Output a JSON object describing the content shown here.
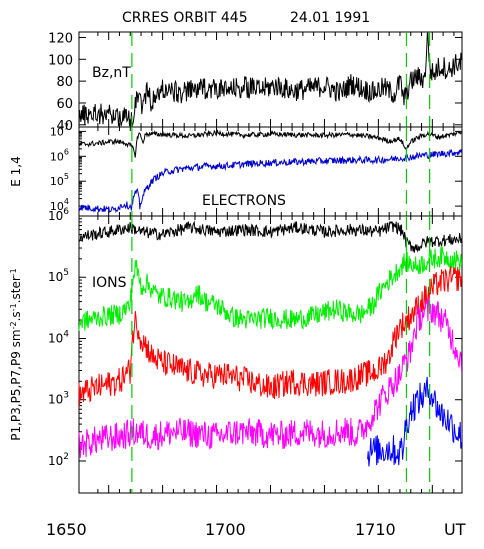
{
  "header": {
    "title": "CRRES ORBIT 445",
    "date": "24.01 1991"
  },
  "chart_data": [
    {
      "type": "line",
      "panel": "bz",
      "label": "Bz,nT",
      "ylim": [
        38,
        125
      ],
      "yscale": "linear",
      "yticks": [
        "40",
        "60",
        "80",
        "100",
        "120"
      ],
      "ytick_values": [
        40,
        60,
        80,
        100,
        120
      ],
      "xlim": [
        1644.5,
        1715.5
      ],
      "series": [
        {
          "color": "#000000",
          "x": [
            1644.5,
            1647,
            1649,
            1651,
            1653,
            1654.4,
            1654.8,
            1655.3,
            1655.8,
            1656.3,
            1657,
            1658,
            1660,
            1663,
            1666,
            1669,
            1672,
            1675,
            1678,
            1681,
            1684,
            1687,
            1690,
            1693,
            1695,
            1697,
            1699,
            1701,
            1703,
            1704,
            1704.7,
            1706,
            1707,
            1708.6,
            1709.1,
            1709.6,
            1710.3,
            1711,
            1712,
            1713,
            1714,
            1715.5
          ],
          "y": [
            48,
            51,
            50,
            49,
            47,
            43,
            58,
            70,
            66,
            55,
            72,
            60,
            73,
            69,
            72,
            74,
            71,
            75,
            72,
            76,
            71,
            73,
            76,
            69,
            78,
            73,
            70,
            74,
            68,
            80,
            63,
            79,
            84,
            82,
            125,
            90,
            86,
            92,
            94,
            89,
            95,
            97
          ],
          "noise": 2.5
        }
      ]
    },
    {
      "type": "line",
      "panel": "electrons",
      "label": "ELECTRONS",
      "ylabel": "E 1,4",
      "yscale": "log",
      "ylim": [
        4000,
        15000000
      ],
      "yticks": [
        "10",
        "10",
        "10",
        "10"
      ],
      "ytick_exponents": [
        "4",
        "5",
        "6",
        "7"
      ],
      "ytick_values": [
        10000,
        100000,
        1000000,
        10000000
      ],
      "xlim": [
        1644.5,
        1715.5
      ],
      "series": [
        {
          "name": "E1",
          "color": "#000000",
          "x": [
            1644.5,
            1648,
            1651,
            1653,
            1654.3,
            1655,
            1655.6,
            1656.3,
            1657,
            1660,
            1665,
            1670,
            1675,
            1680,
            1685,
            1690,
            1695,
            1700,
            1702,
            1703,
            1704,
            1705,
            1706.5,
            1709,
            1711,
            1713,
            1715.5
          ],
          "y": [
            3000000,
            3300000,
            4000000,
            3500000,
            2400000,
            1000000,
            9000000,
            3500000,
            8000000,
            7500000,
            6500000,
            8500000,
            7000000,
            7800000,
            7200000,
            7000000,
            7500000,
            5500000,
            4000000,
            4500000,
            5000000,
            1800000,
            4500000,
            8000000,
            6000000,
            7000000,
            9500000
          ],
          "noise": 0.1
        },
        {
          "name": "E4",
          "color": "#0000cc",
          "x": [
            1644.5,
            1648,
            1651,
            1653,
            1654.3,
            1654.7,
            1655.2,
            1655.8,
            1656.5,
            1657.5,
            1659,
            1661,
            1664,
            1668,
            1672,
            1676,
            1680,
            1685,
            1690,
            1695,
            1700,
            1703,
            1705,
            1706.5,
            1708,
            1710,
            1712,
            1715.5
          ],
          "y": [
            9000,
            8000,
            7000,
            12000,
            9000,
            25000,
            40000,
            8000,
            30000,
            70000,
            150000,
            250000,
            320000,
            400000,
            420000,
            500000,
            550000,
            600000,
            650000,
            700000,
            700000,
            800000,
            900000,
            950000,
            1100000,
            1150000,
            1300000,
            1500000
          ],
          "noise": 0.14
        }
      ]
    },
    {
      "type": "line",
      "panel": "ions",
      "label": "IONS",
      "ylabel": "P1,P3,P5,P7,P9  sm",
      "ylabel_sup": "-2",
      "ylabel_mid": ".s",
      "ylabel_sup2": "-1",
      "ylabel_end": ".ster",
      "ylabel_sup3": "-1",
      "yscale": "log",
      "ylim": [
        30,
        1000000
      ],
      "yticks": [
        "10",
        "10",
        "10",
        "10",
        "10"
      ],
      "ytick_exponents": [
        "2",
        "3",
        "4",
        "5",
        "6"
      ],
      "ytick_values": [
        100,
        1000,
        10000,
        100000,
        1000000
      ],
      "xlim": [
        1644.5,
        1715.5
      ],
      "series": [
        {
          "name": "P1",
          "color": "#000000",
          "x": [
            1644.5,
            1650,
            1654,
            1656,
            1660,
            1665,
            1670,
            1675,
            1680,
            1685,
            1690,
            1695,
            1700,
            1703,
            1704.5,
            1705.2,
            1707,
            1709,
            1712,
            1715.5
          ],
          "y": [
            450000,
            550000,
            650000,
            550000,
            500000,
            650000,
            550000,
            600000,
            550000,
            650000,
            550000,
            600000,
            550000,
            700000,
            550000,
            350000,
            300000,
            380000,
            400000,
            420000
          ],
          "noise": 0.1
        },
        {
          "name": "P3",
          "color": "#00ee00",
          "x": [
            1644.5,
            1648,
            1652,
            1654,
            1655,
            1656,
            1657,
            1659,
            1662,
            1665,
            1666,
            1668,
            1670,
            1673,
            1676,
            1680,
            1684,
            1688,
            1692,
            1695,
            1697,
            1699,
            1701,
            1703,
            1705,
            1707,
            1710,
            1712,
            1715.5
          ],
          "y": [
            18000,
            22000,
            25000,
            35000,
            150000,
            70000,
            80000,
            50000,
            45000,
            35000,
            60000,
            40000,
            35000,
            22000,
            20000,
            22000,
            20000,
            23000,
            30000,
            25000,
            25000,
            35000,
            70000,
            110000,
            180000,
            150000,
            200000,
            220000,
            180000
          ],
          "noise": 0.17
        },
        {
          "name": "P5",
          "color": "#ff0000",
          "x": [
            1644.5,
            1648,
            1652,
            1654,
            1655,
            1656,
            1658,
            1660,
            1664,
            1668,
            1672,
            1676,
            1680,
            1684,
            1688,
            1692,
            1694,
            1697,
            1700,
            1702,
            1703,
            1704,
            1705,
            1707,
            1709,
            1711,
            1713,
            1715.5
          ],
          "y": [
            1200,
            1600,
            2000,
            3000,
            20000,
            10000,
            5000,
            4000,
            3000,
            2500,
            2500,
            2000,
            1500,
            2000,
            1800,
            2000,
            2000,
            2500,
            3000,
            5000,
            10000,
            16000,
            18000,
            30000,
            50000,
            80000,
            90000,
            100000
          ],
          "noise": 0.22
        },
        {
          "name": "P7",
          "color": "#ff00ff",
          "x": [
            1644.5,
            1648,
            1652,
            1655,
            1658,
            1662,
            1666,
            1670,
            1674,
            1678,
            1682,
            1686,
            1690,
            1694,
            1696,
            1698,
            1700,
            1702,
            1704,
            1706,
            1708,
            1710,
            1712,
            1714,
            1715.5
          ],
          "y": [
            180,
            220,
            250,
            300,
            250,
            300,
            280,
            250,
            300,
            280,
            260,
            300,
            280,
            320,
            260,
            400,
            800,
            1500,
            2500,
            6000,
            25000,
            30000,
            20000,
            8000,
            4000
          ],
          "noise": 0.24
        },
        {
          "name": "P9",
          "color": "#0000ff",
          "x": [
            1698,
            1700,
            1702,
            1703.5,
            1704.5,
            1705.5,
            1706.5,
            1707.5,
            1708.5,
            1709.5,
            1710.5,
            1711.5,
            1712.5,
            1713.5,
            1714.5,
            1715.5
          ],
          "y": [
            140,
            150,
            160,
            140,
            150,
            500,
            800,
            1000,
            1200,
            1500,
            900,
            600,
            500,
            400,
            300,
            250
          ],
          "noise": 0.26
        }
      ]
    }
  ],
  "event_markers": [
    1654.3,
    1705.2,
    1709.5
  ],
  "x_axis": {
    "labels": [
      "1650",
      "1700",
      "1710",
      "UT"
    ],
    "label_values": [
      1650,
      1700,
      1710,
      null
    ],
    "minor_ticks": [
      1648,
      1650,
      1652,
      1654,
      1656,
      1658,
      1660,
      1662,
      1664,
      1666,
      1668,
      1670,
      1672,
      1674,
      1676,
      1678,
      1680,
      1682,
      1684,
      1686,
      1688,
      1690,
      1692,
      1694,
      1696,
      1698,
      1700,
      1702,
      1704,
      1706,
      1708,
      1710,
      1712,
      1714
    ]
  },
  "colors": {
    "marker": "#00cc00",
    "axis": "#000000",
    "background": "#ffffff"
  }
}
